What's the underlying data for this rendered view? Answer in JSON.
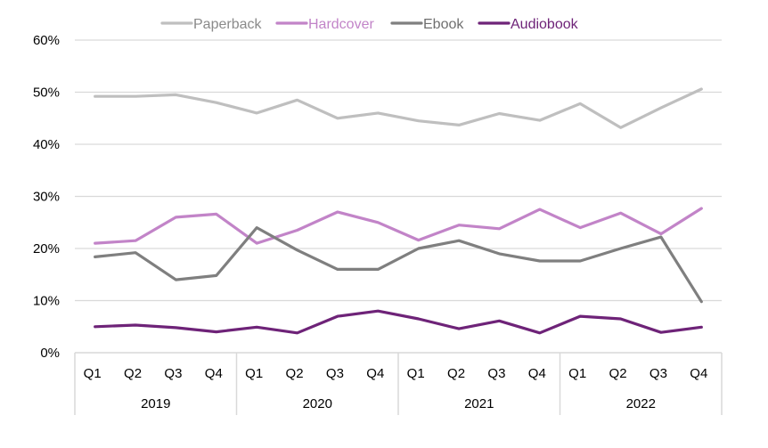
{
  "chart_data": {
    "type": "line",
    "title": "",
    "xlabel": "",
    "ylabel": "",
    "ylim": [
      0,
      60
    ],
    "yticks": [
      "0%",
      "10%",
      "20%",
      "30%",
      "40%",
      "50%",
      "60%"
    ],
    "grid": true,
    "legend_position": "top",
    "categories": [
      "Q1",
      "Q2",
      "Q3",
      "Q4",
      "Q1",
      "Q2",
      "Q3",
      "Q4",
      "Q1",
      "Q2",
      "Q3",
      "Q4",
      "Q1",
      "Q2",
      "Q3",
      "Q4"
    ],
    "groups": [
      "2019",
      "2020",
      "2021",
      "2022"
    ],
    "series": [
      {
        "name": "Paperback",
        "color": "#bfbfbf",
        "text_color": "#8a8a8a",
        "values": [
          49.2,
          49.2,
          49.5,
          48.0,
          46.0,
          48.5,
          45.0,
          46.0,
          44.5,
          43.7,
          45.9,
          44.6,
          47.8,
          43.2,
          47.0,
          50.6
        ]
      },
      {
        "name": "Hardcover",
        "color": "#c284c8",
        "text_color": "#c284c8",
        "values": [
          21.0,
          21.5,
          26.0,
          26.6,
          21.0,
          23.5,
          27.0,
          25.0,
          21.6,
          24.5,
          23.8,
          27.5,
          24.0,
          26.8,
          22.8,
          27.7
        ]
      },
      {
        "name": "Ebook",
        "color": "#7f7f7f",
        "text_color": "#6f6f6f",
        "values": [
          18.4,
          19.2,
          14.0,
          14.8,
          24.0,
          19.7,
          16.0,
          16.0,
          20.0,
          21.5,
          19.0,
          17.6,
          17.6,
          20.0,
          22.2,
          9.8
        ]
      },
      {
        "name": "Audiobook",
        "color": "#6e2378",
        "text_color": "#6e2378",
        "values": [
          5.0,
          5.3,
          4.8,
          4.0,
          4.9,
          3.8,
          7.0,
          8.0,
          6.5,
          4.6,
          6.1,
          3.8,
          7.0,
          6.5,
          3.9,
          4.9
        ]
      }
    ]
  }
}
